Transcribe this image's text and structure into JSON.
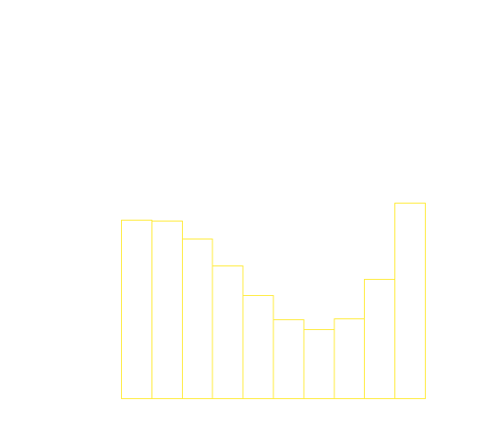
{
  "chart_data": {
    "type": "bar",
    "categories": [
      "",
      "",
      "",
      "",
      "",
      "",
      "",
      "",
      "",
      ""
    ],
    "values": [
      199,
      198,
      178,
      148,
      115,
      88,
      77,
      89,
      133,
      218
    ],
    "title": "",
    "xlabel": "",
    "ylabel": "",
    "ylim": [
      0,
      218
    ],
    "grid": false,
    "legend": "none",
    "bar_style": "outline"
  },
  "colors": {
    "background": "#ffffff",
    "bar_stroke": "#ffeb3b"
  }
}
